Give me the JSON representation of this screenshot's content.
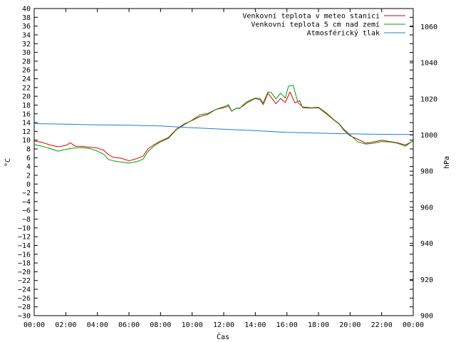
{
  "chart_data": {
    "type": "line",
    "xlabel": "Čas",
    "ylabel": "°C",
    "y2label": "hPa",
    "xlim": [
      0,
      24
    ],
    "ylim": [
      -30,
      40
    ],
    "y2lim": [
      900,
      1070
    ],
    "grid": false,
    "legend_position": "top-right",
    "x_ticks": [
      "00:00",
      "02:00",
      "04:00",
      "06:00",
      "08:00",
      "10:00",
      "12:00",
      "14:00",
      "16:00",
      "18:00",
      "20:00",
      "22:00",
      "00:00"
    ],
    "x_tick_values": [
      0,
      2,
      4,
      6,
      8,
      10,
      12,
      14,
      16,
      18,
      20,
      22,
      24
    ],
    "y_ticks": [
      40,
      38,
      36,
      34,
      32,
      30,
      28,
      26,
      24,
      22,
      20,
      18,
      16,
      14,
      12,
      10,
      8,
      6,
      4,
      2,
      0,
      -2,
      -4,
      -6,
      -8,
      -10,
      -12,
      -14,
      -16,
      -18,
      -20,
      -22,
      -24,
      -26,
      -28,
      -30
    ],
    "y_tick_labels": [
      "40",
      "38",
      "36",
      "34",
      "32",
      "30",
      "28",
      "26",
      "24",
      "22",
      "20",
      "18",
      "16",
      "14",
      "12",
      "10",
      "8",
      "6",
      "4",
      "2",
      "0",
      "−2",
      "−4",
      "−6",
      "−8",
      "−10",
      "−12",
      "−14",
      "−16",
      "−18",
      "−20",
      "−22",
      "−24",
      "−26",
      "−28",
      "−30"
    ],
    "y2_ticks": [
      1060,
      1040,
      1020,
      1000,
      980,
      960,
      940,
      920,
      900
    ],
    "series": [
      {
        "name": "Venkovní teplota v meteo stanici",
        "axis": "y",
        "color": "#e00000",
        "points": [
          [
            0,
            9.8
          ],
          [
            0.5,
            9.5
          ],
          [
            1,
            8.9
          ],
          [
            1.5,
            8.5
          ],
          [
            2,
            8.8
          ],
          [
            2.3,
            9.4
          ],
          [
            2.6,
            8.6
          ],
          [
            3,
            8.6
          ],
          [
            3.5,
            8.4
          ],
          [
            4,
            8.2
          ],
          [
            4.4,
            7.7
          ],
          [
            4.7,
            6.7
          ],
          [
            5,
            6.1
          ],
          [
            5.5,
            5.9
          ],
          [
            6,
            5.3
          ],
          [
            6.5,
            5.8
          ],
          [
            6.9,
            6.4
          ],
          [
            7.2,
            8.0
          ],
          [
            7.6,
            9.0
          ],
          [
            8,
            9.8
          ],
          [
            8.5,
            10.6
          ],
          [
            9,
            12.5
          ],
          [
            9.5,
            13.7
          ],
          [
            10,
            14.5
          ],
          [
            10.5,
            15.4
          ],
          [
            11,
            15.9
          ],
          [
            11.5,
            17.0
          ],
          [
            12,
            17.4
          ],
          [
            12.3,
            17.8
          ],
          [
            12.5,
            16.6
          ],
          [
            12.8,
            17.3
          ],
          [
            13,
            17.3
          ],
          [
            13.3,
            18.0
          ],
          [
            13.5,
            18.6
          ],
          [
            14,
            19.5
          ],
          [
            14.3,
            19.2
          ],
          [
            14.5,
            18.1
          ],
          [
            14.8,
            20.7
          ],
          [
            15,
            19.8
          ],
          [
            15.3,
            18.3
          ],
          [
            15.6,
            19.5
          ],
          [
            15.9,
            18.6
          ],
          [
            16.2,
            21.0
          ],
          [
            16.5,
            18.5
          ],
          [
            16.8,
            19.0
          ],
          [
            17,
            17.4
          ],
          [
            17.5,
            17.3
          ],
          [
            18,
            17.4
          ],
          [
            18.5,
            16.0
          ],
          [
            19,
            14.5
          ],
          [
            19.3,
            13.7
          ],
          [
            19.6,
            12.3
          ],
          [
            20,
            11.0
          ],
          [
            20.5,
            10.2
          ],
          [
            21,
            9.3
          ],
          [
            21.5,
            9.6
          ],
          [
            22,
            10.0
          ],
          [
            22.5,
            9.7
          ],
          [
            23,
            9.4
          ],
          [
            23.5,
            8.9
          ],
          [
            24,
            9.8
          ]
        ]
      },
      {
        "name": "Venkovní teplota 5 cm nad zemí",
        "axis": "y",
        "color": "#00a000",
        "points": [
          [
            0,
            9.0
          ],
          [
            0.5,
            8.6
          ],
          [
            1,
            8.1
          ],
          [
            1.5,
            7.5
          ],
          [
            2,
            7.9
          ],
          [
            2.5,
            8.2
          ],
          [
            3,
            8.3
          ],
          [
            3.5,
            8.1
          ],
          [
            4,
            7.5
          ],
          [
            4.4,
            6.8
          ],
          [
            4.7,
            5.6
          ],
          [
            5,
            5.3
          ],
          [
            5.5,
            5.0
          ],
          [
            6,
            4.8
          ],
          [
            6.5,
            5.1
          ],
          [
            6.9,
            5.7
          ],
          [
            7.2,
            7.4
          ],
          [
            7.6,
            8.7
          ],
          [
            8,
            9.6
          ],
          [
            8.5,
            10.4
          ],
          [
            9,
            12.4
          ],
          [
            9.5,
            13.5
          ],
          [
            10,
            14.6
          ],
          [
            10.5,
            15.8
          ],
          [
            11,
            16.1
          ],
          [
            11.5,
            17.0
          ],
          [
            12,
            17.6
          ],
          [
            12.3,
            18.1
          ],
          [
            12.5,
            16.6
          ],
          [
            12.8,
            17.3
          ],
          [
            13,
            17.2
          ],
          [
            13.3,
            18.3
          ],
          [
            13.5,
            18.8
          ],
          [
            14,
            19.6
          ],
          [
            14.3,
            19.5
          ],
          [
            14.5,
            18.5
          ],
          [
            14.8,
            21.0
          ],
          [
            15,
            20.9
          ],
          [
            15.3,
            19.4
          ],
          [
            15.6,
            20.7
          ],
          [
            15.9,
            19.6
          ],
          [
            16.1,
            22.3
          ],
          [
            16.4,
            22.5
          ],
          [
            16.7,
            18.5
          ],
          [
            17,
            17.6
          ],
          [
            17.5,
            17.4
          ],
          [
            18,
            17.5
          ],
          [
            18.5,
            16.2
          ],
          [
            19,
            14.6
          ],
          [
            19.3,
            13.8
          ],
          [
            19.6,
            12.5
          ],
          [
            20,
            11.2
          ],
          [
            20.5,
            9.6
          ],
          [
            21,
            9.1
          ],
          [
            21.5,
            9.3
          ],
          [
            22,
            9.7
          ],
          [
            22.5,
            9.6
          ],
          [
            23,
            9.3
          ],
          [
            23.5,
            8.6
          ],
          [
            24,
            9.9
          ]
        ]
      },
      {
        "name": "Atmosférický tlak",
        "axis": "y2",
        "color": "#1a7fdc",
        "points": [
          [
            0,
            1006.3
          ],
          [
            2,
            1006.0
          ],
          [
            4,
            1005.6
          ],
          [
            6,
            1005.4
          ],
          [
            8,
            1005.0
          ],
          [
            10,
            1004.0
          ],
          [
            12,
            1003.2
          ],
          [
            14,
            1002.4
          ],
          [
            16,
            1001.5
          ],
          [
            18,
            1001.0
          ],
          [
            20,
            1000.6
          ],
          [
            22,
            1000.4
          ],
          [
            24,
            1000.3
          ]
        ]
      }
    ]
  }
}
